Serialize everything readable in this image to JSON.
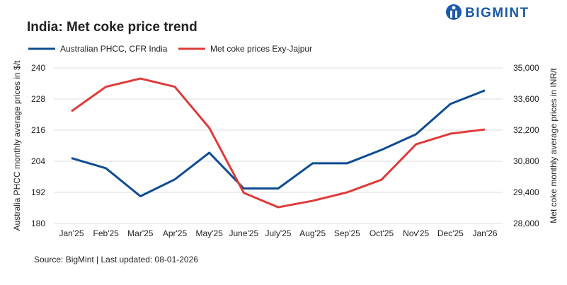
{
  "chart_data": {
    "type": "line",
    "title": "India: Met coke price trend",
    "logo": "BIGMINT",
    "source": "Source: BigMint | Last updated: 08-01-2026",
    "ylabel": "Australia PHCC monthly average prices in $/t",
    "y2label": "Met coke monthly average prices in INR/t",
    "categories": [
      "Jan'25",
      "Feb'25",
      "Mar'25",
      "Apr'25",
      "May'25",
      "June'25",
      "July'25",
      "Aug'25",
      "Sep'25",
      "Oct'25",
      "Nov'25",
      "Dec'25",
      "Jan'26"
    ],
    "series": [
      {
        "name": "Australian PHCC, CFR India",
        "color": "#0e4c92",
        "values": [
          205.2,
          201.3,
          190.5,
          197,
          207.3,
          193.5,
          193.5,
          203.2,
          203.2,
          208.4,
          214.4,
          226.1,
          231.3
        ]
      },
      {
        "name": "Met coke prices Exy-Jajpur",
        "color": "#e03a3a",
        "axis": "y2",
        "values": [
          33050,
          34150,
          34520,
          34150,
          32300,
          29380,
          28730,
          29020,
          29400,
          29970,
          31560,
          32040,
          32230
        ]
      }
    ],
    "ylim": [
      180,
      240
    ],
    "yticks": [
      180,
      192,
      204,
      216,
      228,
      240
    ],
    "y2lim": [
      28000,
      35000
    ],
    "y2ticks": [
      {
        "value": 28000,
        "label": "28,000"
      },
      {
        "value": 29400,
        "label": "29,400"
      },
      {
        "value": 30800,
        "label": "30,800"
      },
      {
        "value": 32200,
        "label": "32,200"
      },
      {
        "value": 33600,
        "label": "33,600"
      },
      {
        "value": 35000,
        "label": "35,000"
      }
    ],
    "grid": true
  }
}
